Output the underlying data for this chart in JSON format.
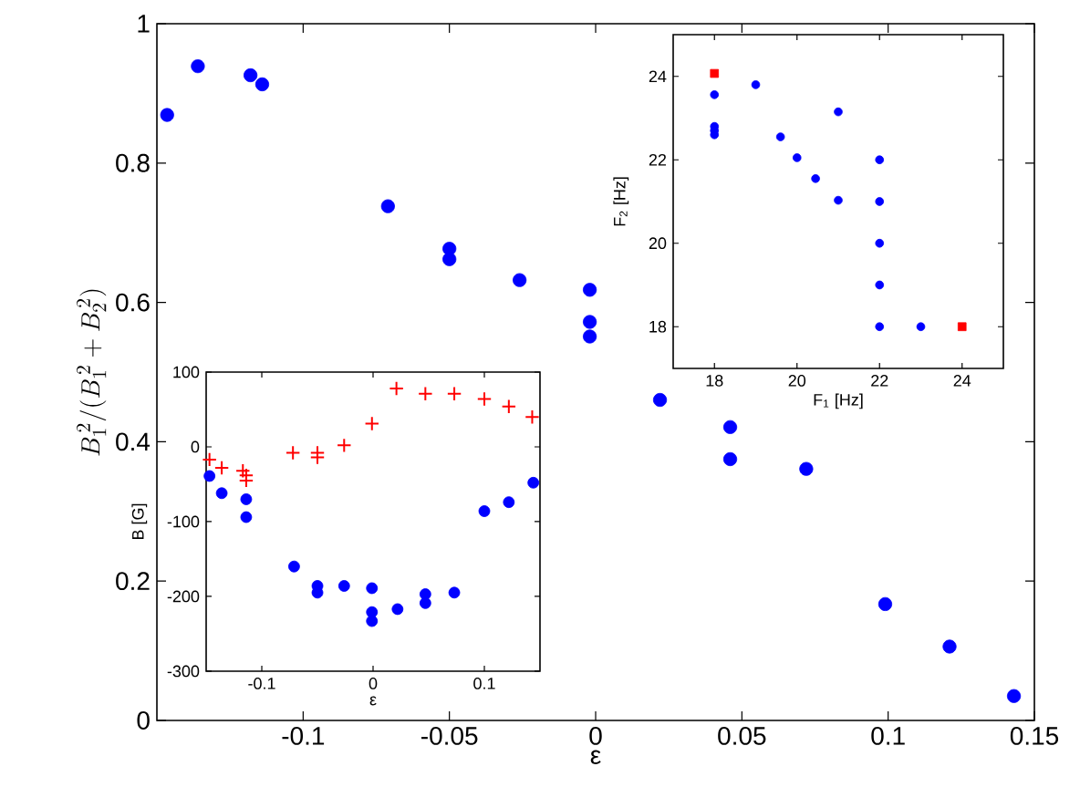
{
  "chart_data": [
    {
      "type": "scatter",
      "xlabel": "ε",
      "ylabel": "B_1^{\\,2}/(B_1^{\\,2}+B_2^{\\,2})",
      "x": [
        -0.1465,
        -0.136,
        -0.118,
        -0.114,
        -0.071,
        -0.05,
        -0.05,
        -0.026,
        -0.002,
        -0.002,
        -0.002,
        0.022,
        0.046,
        0.046,
        0.072,
        0.099,
        0.121,
        0.143
      ],
      "series": [
        {
          "color": "#0000ff",
          "marker": "circle",
          "values": [
            0.869,
            0.939,
            0.926,
            0.913,
            0.738,
            0.677,
            0.662,
            0.632,
            0.618,
            0.572,
            0.551,
            0.46,
            0.421,
            0.375,
            0.361,
            0.167,
            0.106,
            0.035
          ]
        }
      ],
      "xlim": [
        -0.15,
        0.15
      ],
      "ylim": [
        0,
        1
      ],
      "xticks": [
        -0.1,
        -0.05,
        0,
        0.05,
        0.1,
        0.15
      ],
      "yticks": [
        0,
        0.2,
        0.4,
        0.6,
        0.8,
        1
      ]
    },
    {
      "type": "scatter",
      "xlabel": "ε",
      "ylabel": "B [G]",
      "series": [
        {
          "color": "#ff0000",
          "marker": "cross",
          "x": [
            -0.147,
            -0.136,
            -0.117,
            -0.114,
            -0.114,
            -0.072,
            -0.05,
            -0.05,
            -0.026,
            -0.001,
            0.021,
            0.047,
            0.073,
            0.1,
            0.122,
            0.143
          ],
          "values": [
            -17,
            -28,
            -32,
            -38,
            -45,
            -8,
            -8,
            -14,
            2,
            31,
            78,
            71,
            71,
            64,
            54,
            40
          ]
        },
        {
          "color": "#0000ff",
          "marker": "circle",
          "x": [
            -0.147,
            -0.136,
            -0.117,
            -0.114,
            -0.114,
            -0.071,
            -0.05,
            -0.05,
            -0.026,
            -0.001,
            -0.001,
            -0.001,
            0.022,
            0.047,
            0.047,
            0.073,
            0.1,
            0.122,
            0.144
          ],
          "values": [
            -39,
            -62,
            null,
            -70,
            -94,
            -160,
            -186,
            -195,
            -186,
            -189,
            -221,
            -233,
            -217,
            -197,
            -209,
            -195,
            -86,
            -74,
            -48
          ]
        }
      ],
      "xlim": [
        -0.15,
        0.15
      ],
      "ylim": [
        -300,
        100
      ],
      "xticks": [
        -0.1,
        0,
        0.1
      ],
      "yticks": [
        -300,
        -200,
        -100,
        0,
        100
      ]
    },
    {
      "type": "scatter",
      "xlabel": "F$_{1}$ [Hz]",
      "ylabel": "F$_{2}$ [Hz]",
      "series": [
        {
          "color": "#0000ff",
          "marker": "circle",
          "x": [
            18,
            18,
            18,
            18,
            19,
            19.6,
            20,
            20.45,
            21,
            21,
            22,
            22,
            22,
            22,
            22,
            23
          ],
          "values": [
            23.56,
            22.8,
            22.7,
            22.6,
            23.8,
            22.55,
            22.05,
            21.55,
            23.15,
            21.03,
            22,
            21,
            20,
            19,
            18,
            18
          ]
        },
        {
          "color": "#ff0000",
          "marker": "square",
          "x": [
            18,
            24
          ],
          "values": [
            24.07,
            18
          ]
        }
      ],
      "xlim": [
        17,
        25
      ],
      "ylim": [
        17,
        25
      ],
      "xticks": [
        18,
        20,
        22,
        24
      ],
      "yticks": [
        18,
        20,
        22,
        24
      ]
    }
  ]
}
